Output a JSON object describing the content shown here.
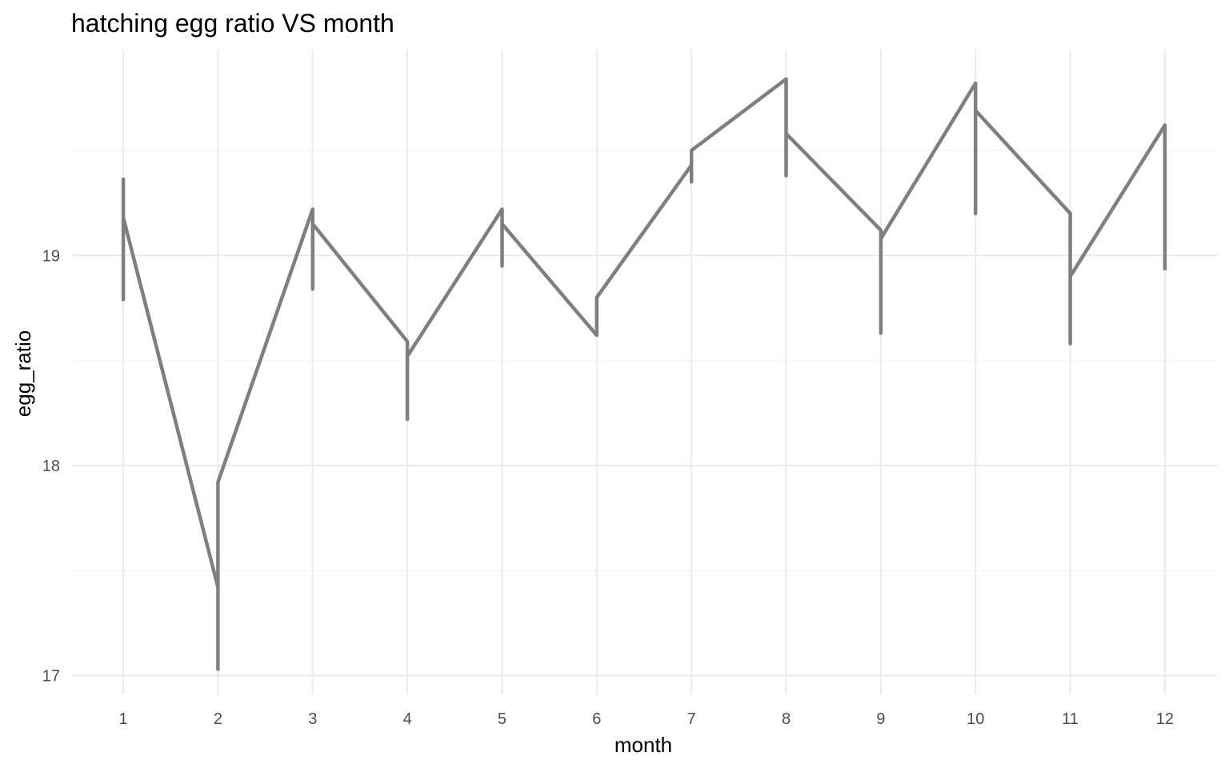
{
  "chart_data": {
    "type": "line",
    "title": "hatching egg ratio VS month",
    "xlabel": "month",
    "ylabel": "egg_ratio",
    "x_ticks": [
      1,
      2,
      3,
      4,
      5,
      6,
      7,
      8,
      9,
      10,
      11,
      12
    ],
    "y_ticks": [
      17,
      18,
      19
    ],
    "xlim": [
      0.45,
      12.55
    ],
    "ylim": [
      16.91,
      19.98
    ],
    "grid": true,
    "legend": "none",
    "series": [
      {
        "color": "#7f7f7f",
        "points": [
          {
            "x": 1,
            "y": 19.37
          },
          {
            "x": 1,
            "y": 18.79
          },
          {
            "x": 1,
            "y": 19.18
          },
          {
            "x": 2,
            "y": 17.42
          },
          {
            "x": 2,
            "y": 17.03
          },
          {
            "x": 2,
            "y": 17.92
          },
          {
            "x": 3,
            "y": 19.22
          },
          {
            "x": 3,
            "y": 18.84
          },
          {
            "x": 3,
            "y": 19.15
          },
          {
            "x": 4,
            "y": 18.59
          },
          {
            "x": 4,
            "y": 18.22
          },
          {
            "x": 4,
            "y": 18.52
          },
          {
            "x": 5,
            "y": 19.22
          },
          {
            "x": 5,
            "y": 18.95
          },
          {
            "x": 5,
            "y": 19.15
          },
          {
            "x": 6,
            "y": 18.62
          },
          {
            "x": 6,
            "y": 18.8
          },
          {
            "x": 7,
            "y": 19.43
          },
          {
            "x": 7,
            "y": 19.35
          },
          {
            "x": 7,
            "y": 19.5
          },
          {
            "x": 8,
            "y": 19.84
          },
          {
            "x": 8,
            "y": 19.38
          },
          {
            "x": 8,
            "y": 19.58
          },
          {
            "x": 9,
            "y": 19.12
          },
          {
            "x": 9,
            "y": 18.63
          },
          {
            "x": 9,
            "y": 19.08
          },
          {
            "x": 10,
            "y": 19.82
          },
          {
            "x": 10,
            "y": 19.2
          },
          {
            "x": 10,
            "y": 19.69
          },
          {
            "x": 11,
            "y": 19.2
          },
          {
            "x": 11,
            "y": 18.58
          },
          {
            "x": 11,
            "y": 18.9
          },
          {
            "x": 12,
            "y": 19.62
          },
          {
            "x": 12,
            "y": 18.93
          }
        ]
      }
    ]
  }
}
